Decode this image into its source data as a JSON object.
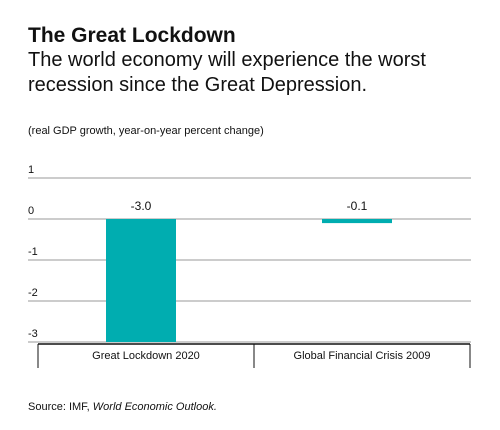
{
  "header": {
    "title": "The Great Lockdown",
    "subtitle": "The world economy will experience the worst recession since the Great Depression."
  },
  "unit_note": "(real GDP growth, year-on-year percent change)",
  "source": {
    "prefix": "Source: IMF, ",
    "title": "World Economic Outlook."
  },
  "colors": {
    "bar": "#00adb0",
    "gridline": "#9a9a9a",
    "axis": "#111111"
  },
  "chart_data": {
    "type": "bar",
    "categories": [
      "Great Lockdown 2020",
      "Global Financial Crisis 2009"
    ],
    "values": [
      -3.0,
      -0.1
    ],
    "value_labels": [
      "-3.0",
      "-0.1"
    ],
    "ylim": [
      -3,
      1
    ],
    "yticks": [
      1,
      0,
      -1,
      -2,
      -3
    ],
    "grid": true,
    "legend": "none"
  }
}
